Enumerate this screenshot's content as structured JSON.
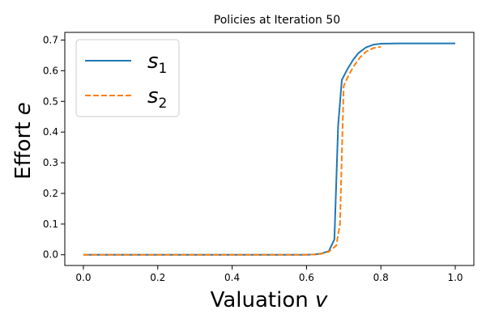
{
  "chart_data": {
    "type": "line",
    "title": "Policies at Iteration 50",
    "xlabel": {
      "text": "Valuation",
      "var": "v"
    },
    "ylabel": {
      "text": "Effort",
      "var": "e"
    },
    "xlim": [
      -0.05,
      1.05
    ],
    "ylim": [
      -0.035,
      0.725
    ],
    "x_ticks": [
      0.0,
      0.2,
      0.4,
      0.6,
      0.8,
      1.0
    ],
    "x_tick_labels": [
      "0.0",
      "0.2",
      "0.4",
      "0.6",
      "0.8",
      "1.0"
    ],
    "y_ticks": [
      0.0,
      0.1,
      0.2,
      0.3,
      0.4,
      0.5,
      0.6,
      0.7
    ],
    "y_tick_labels": [
      "0.0",
      "0.1",
      "0.2",
      "0.3",
      "0.4",
      "0.5",
      "0.6",
      "0.7"
    ],
    "grid": false,
    "legend": "top-left",
    "series": [
      {
        "name": "s1",
        "name_base": "s",
        "name_sub": "1",
        "color": "#1f77b4",
        "dash": "solid",
        "points": [
          [
            0.0,
            0.0
          ],
          [
            0.1,
            0.0
          ],
          [
            0.2,
            0.0
          ],
          [
            0.3,
            0.0
          ],
          [
            0.4,
            0.0
          ],
          [
            0.5,
            0.0
          ],
          [
            0.6,
            0.0
          ],
          [
            0.62,
            0.001
          ],
          [
            0.64,
            0.004
          ],
          [
            0.66,
            0.012
          ],
          [
            0.675,
            0.05
          ],
          [
            0.685,
            0.42
          ],
          [
            0.695,
            0.57
          ],
          [
            0.71,
            0.605
          ],
          [
            0.725,
            0.635
          ],
          [
            0.74,
            0.658
          ],
          [
            0.76,
            0.676
          ],
          [
            0.78,
            0.685
          ],
          [
            0.8,
            0.688
          ],
          [
            0.85,
            0.689
          ],
          [
            0.9,
            0.689
          ],
          [
            1.0,
            0.689
          ]
        ]
      },
      {
        "name": "s2",
        "name_base": "s",
        "name_sub": "2",
        "color": "#ff7f0e",
        "dash": "dashed",
        "points": [
          [
            0.0,
            0.0
          ],
          [
            0.1,
            0.0
          ],
          [
            0.2,
            0.0
          ],
          [
            0.3,
            0.0
          ],
          [
            0.4,
            0.0
          ],
          [
            0.5,
            0.0
          ],
          [
            0.6,
            0.0
          ],
          [
            0.62,
            0.001
          ],
          [
            0.64,
            0.003
          ],
          [
            0.66,
            0.01
          ],
          [
            0.68,
            0.03
          ],
          [
            0.69,
            0.1
          ],
          [
            0.7,
            0.55
          ],
          [
            0.715,
            0.59
          ],
          [
            0.73,
            0.62
          ],
          [
            0.745,
            0.645
          ],
          [
            0.76,
            0.662
          ],
          [
            0.78,
            0.674
          ],
          [
            0.8,
            0.678
          ]
        ]
      }
    ]
  }
}
